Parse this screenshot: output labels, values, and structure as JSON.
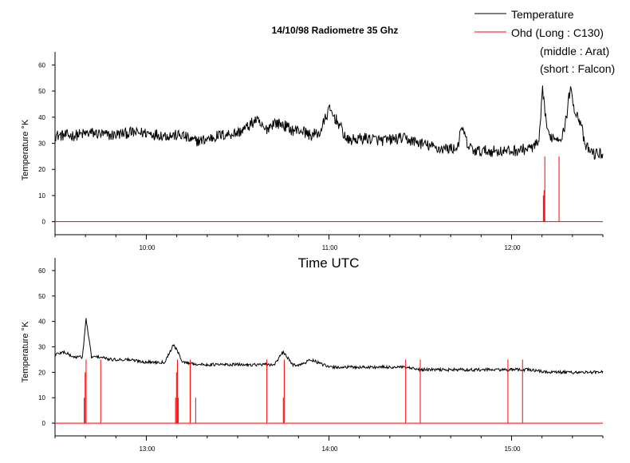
{
  "chart_data": [
    {
      "type": "line",
      "title": "14/10/98 Radiometre 35 Ghz",
      "xlabel": "",
      "ylabel": "Temperature °K",
      "x_unit": "hours UTC",
      "xlim": [
        9.5,
        12.5
      ],
      "ylim": [
        -5,
        65
      ],
      "x_ticks": [
        10,
        11,
        12
      ],
      "x_tick_labels": [
        "10:00",
        "11:00",
        "12:00"
      ],
      "y_ticks": [
        0,
        10,
        20,
        30,
        40,
        50,
        60
      ],
      "y_tick_labels": [
        "0",
        "10",
        "20",
        "30",
        "40",
        "50",
        "60"
      ],
      "grid": false,
      "legend": {
        "placement": "top-right",
        "entries": [
          "Temperature",
          "Ohd (Long : C130)",
          "(middle : Arat)",
          "(short : Falcon)"
        ]
      },
      "series": [
        {
          "name": "Temperature",
          "color": "#000000",
          "x": [
            9.5,
            9.6,
            9.7,
            9.8,
            9.9,
            10.0,
            10.1,
            10.2,
            10.25,
            10.3,
            10.4,
            10.5,
            10.55,
            10.6,
            10.65,
            10.7,
            10.75,
            10.8,
            10.85,
            10.9,
            10.95,
            11.0,
            11.05,
            11.1,
            11.2,
            11.3,
            11.4,
            11.5,
            11.6,
            11.7,
            11.73,
            11.76,
            11.8,
            11.9,
            12.0,
            12.1,
            12.15,
            12.17,
            12.2,
            12.25,
            12.28,
            12.3,
            12.32,
            12.35,
            12.38,
            12.4,
            12.45,
            12.5
          ],
          "values": [
            33,
            33,
            34,
            33,
            34,
            34,
            33,
            33,
            31,
            31,
            33,
            34,
            36,
            39,
            35,
            38,
            37,
            35,
            35,
            33,
            34,
            43,
            38,
            31,
            32,
            31,
            32,
            30,
            28,
            28,
            36,
            29,
            27,
            27,
            27,
            28,
            30,
            50,
            33,
            32,
            33,
            40,
            51,
            42,
            38,
            29,
            26,
            26
          ]
        },
        {
          "name": "Ohd",
          "color": "#ff0000",
          "baseline": 0,
          "spikes": [
            {
              "x": 12.174,
              "value": 10
            },
            {
              "x": 12.178,
              "value": 12
            },
            {
              "x": 12.182,
              "value": 25
            },
            {
              "x": 12.26,
              "value": 25
            }
          ]
        }
      ]
    },
    {
      "type": "line",
      "title": "",
      "xlabel": "Time UTC",
      "ylabel": "Temperature °K",
      "x_unit": "hours UTC",
      "xlim": [
        12.5,
        15.5
      ],
      "ylim": [
        -5,
        65
      ],
      "x_ticks": [
        13,
        14,
        15
      ],
      "x_tick_labels": [
        "13:00",
        "14:00",
        "15:00"
      ],
      "y_ticks": [
        0,
        10,
        20,
        30,
        40,
        50,
        60
      ],
      "y_tick_labels": [
        "0",
        "10",
        "20",
        "30",
        "40",
        "50",
        "60"
      ],
      "grid": false,
      "series": [
        {
          "name": "Temperature",
          "color": "#000000",
          "x": [
            12.5,
            12.55,
            12.6,
            12.65,
            12.67,
            12.7,
            12.75,
            12.8,
            12.9,
            13.0,
            13.1,
            13.15,
            13.2,
            13.3,
            13.4,
            13.5,
            13.6,
            13.7,
            13.75,
            13.8,
            13.85,
            13.9,
            14.0,
            14.1,
            14.2,
            14.3,
            14.4,
            14.5,
            14.6,
            14.7,
            14.8,
            14.9,
            15.0,
            15.1,
            15.2,
            15.3,
            15.4,
            15.5
          ],
          "values": [
            27,
            28,
            26,
            26,
            41,
            26,
            26,
            25,
            25,
            24,
            24,
            31,
            24,
            23,
            23,
            23,
            23,
            23,
            28,
            23,
            23,
            25,
            22,
            22,
            22,
            22,
            22,
            21,
            21,
            21,
            21,
            21,
            21,
            21,
            20,
            20,
            20,
            20
          ]
        },
        {
          "name": "Ohd",
          "color": "#ff0000",
          "baseline": 0,
          "spikes": [
            {
              "x": 12.66,
              "value": 10
            },
            {
              "x": 12.665,
              "value": 20
            },
            {
              "x": 12.67,
              "value": 25
            },
            {
              "x": 12.75,
              "value": 25
            },
            {
              "x": 13.16,
              "value": 10
            },
            {
              "x": 13.165,
              "value": 20
            },
            {
              "x": 13.17,
              "value": 25
            },
            {
              "x": 13.175,
              "value": 10
            },
            {
              "x": 13.24,
              "value": 25
            },
            {
              "x": 13.27,
              "value": 10
            },
            {
              "x": 13.66,
              "value": 25
            },
            {
              "x": 13.75,
              "value": 10
            },
            {
              "x": 13.755,
              "value": 25
            },
            {
              "x": 14.42,
              "value": 25
            },
            {
              "x": 14.5,
              "value": 25
            },
            {
              "x": 14.98,
              "value": 25
            },
            {
              "x": 15.06,
              "value": 25
            }
          ]
        }
      ]
    }
  ]
}
